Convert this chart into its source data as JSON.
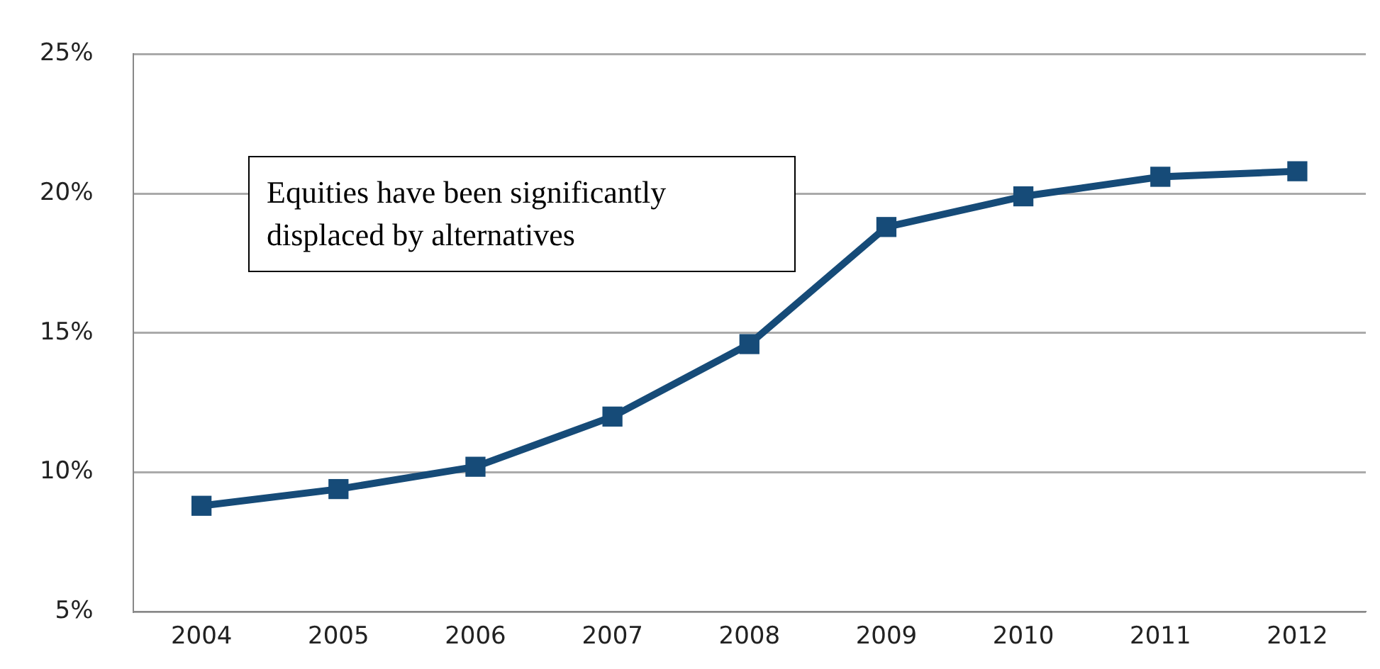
{
  "chart_data": {
    "type": "line",
    "categories": [
      "2004",
      "2005",
      "2006",
      "2007",
      "2008",
      "2009",
      "2010",
      "2011",
      "2012"
    ],
    "series": [
      {
        "color": "#164b78",
        "values": [
          8.8,
          9.4,
          10.2,
          12.0,
          14.6,
          18.8,
          19.9,
          20.6,
          20.8
        ]
      }
    ],
    "ylim": [
      5,
      25
    ],
    "yticks": [
      {
        "value": 5,
        "label": "5%"
      },
      {
        "value": 10,
        "label": "10%"
      },
      {
        "value": 15,
        "label": "15%"
      },
      {
        "value": 20,
        "label": "20%"
      },
      {
        "value": 25,
        "label": "25%"
      }
    ],
    "grid": "y",
    "legend": false,
    "marker": "square",
    "line_style": "solid",
    "annotations": [
      "Equities have been significantly displaced by alternatives"
    ]
  }
}
